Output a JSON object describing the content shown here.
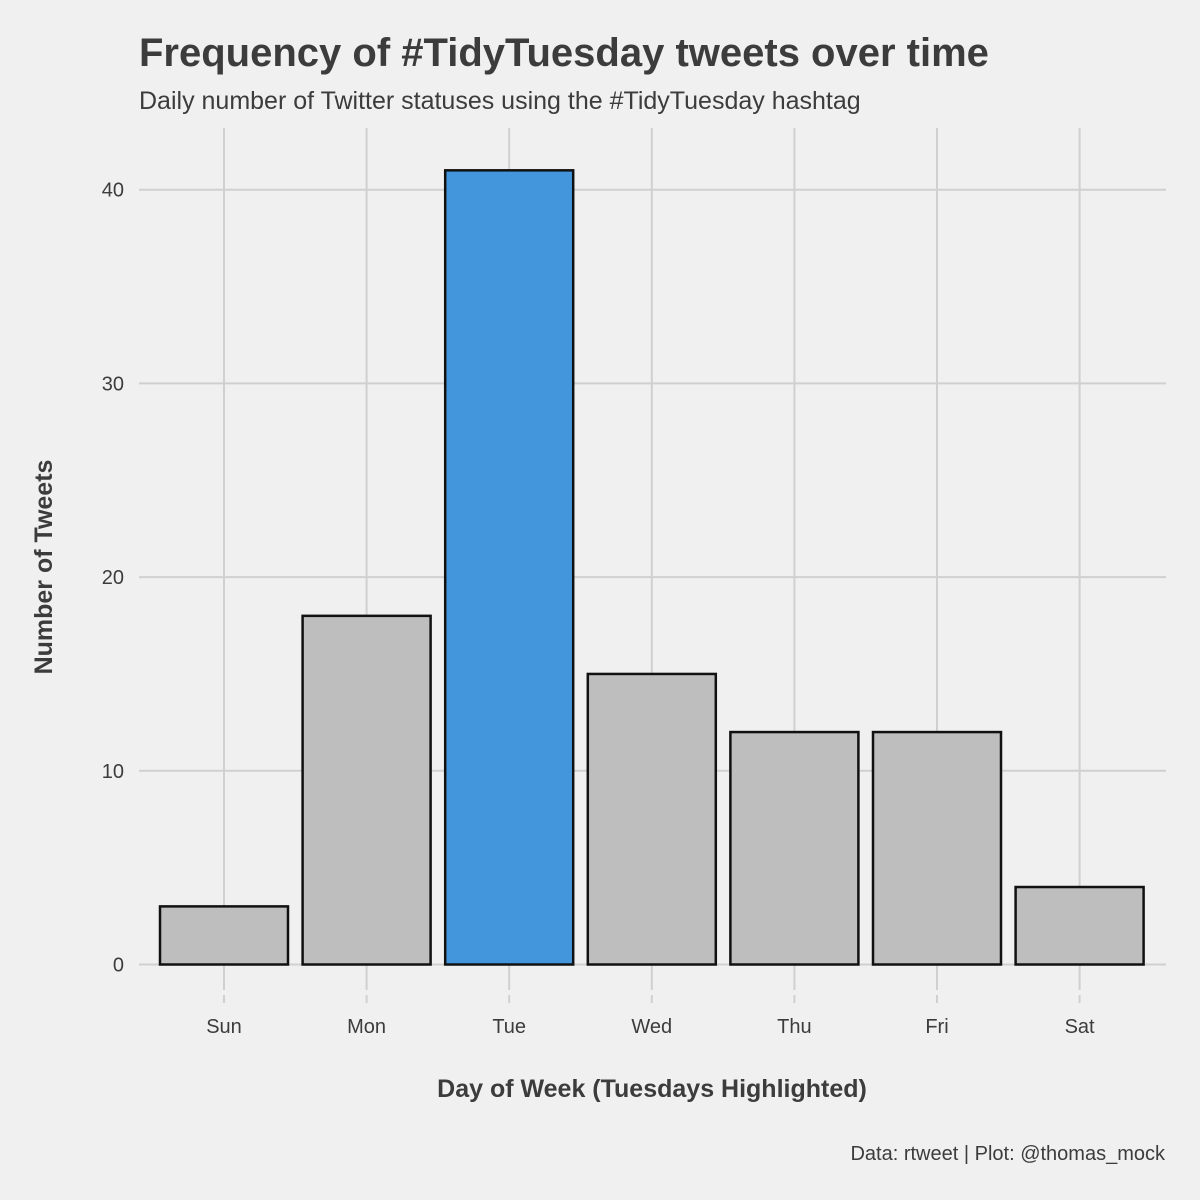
{
  "chart_data": {
    "type": "bar",
    "title": "Frequency of #TidyTuesday tweets over time",
    "subtitle": "Daily number of Twitter statuses using the #TidyTuesday hashtag",
    "xlabel": "Day of Week (Tuesdays Highlighted)",
    "ylabel": "Number of Tweets",
    "caption": "Data: rtweet | Plot: @thomas_mock",
    "categories": [
      "Sun",
      "Mon",
      "Tue",
      "Wed",
      "Thu",
      "Fri",
      "Sat"
    ],
    "values": [
      3,
      18,
      41,
      15,
      12,
      12,
      4
    ],
    "highlight": [
      "Tue"
    ],
    "y_ticks": [
      0,
      10,
      20,
      30,
      40
    ],
    "y_tick_labels": [
      "0",
      "10",
      "20",
      "30",
      "40"
    ],
    "ylim": [
      0,
      43
    ],
    "grid": true,
    "legend": "none",
    "colors": {
      "bar_default": "#bebebe",
      "bar_highlight": "#4396db",
      "bar_outline": "#111111",
      "background": "#f0f0f0",
      "grid": "#d0d0d0",
      "text": "#3c3c3c"
    }
  }
}
